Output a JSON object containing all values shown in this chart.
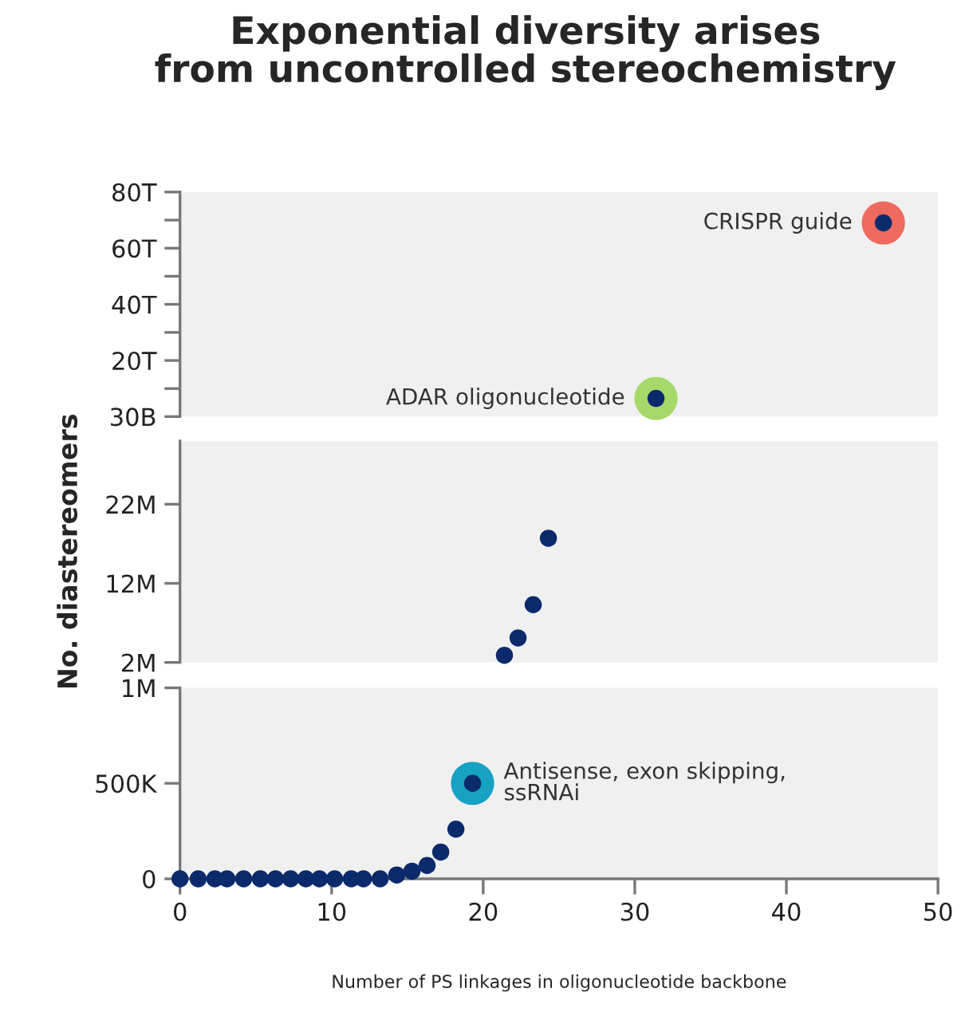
{
  "chart_data": [
    {
      "type": "scatter",
      "title": "Exponential diversity arises\nfrom uncontrolled stereochemistry",
      "xlim": [
        0,
        50
      ],
      "ylim": [
        30000000000,
        80000000000000
      ],
      "yticks": [
        {
          "value": 30000000000,
          "label": "30B"
        },
        {
          "value": 10000000000000,
          "label": null
        },
        {
          "value": 20000000000000,
          "label": "20T"
        },
        {
          "value": 30000000000000,
          "label": null
        },
        {
          "value": 40000000000000,
          "label": "40T"
        },
        {
          "value": 50000000000000,
          "label": null
        },
        {
          "value": 60000000000000,
          "label": "60T"
        },
        {
          "value": 70000000000000,
          "label": null
        },
        {
          "value": 80000000000000,
          "label": "80T"
        }
      ],
      "tick_labels": "y",
      "grid": false,
      "marker": "circle",
      "series": [
        {
          "x": [
            31.4,
            46.4
          ],
          "values": [
            6500000000000,
            69000000000000
          ],
          "colors": [
            "#a6d96a",
            "#ee6a5e"
          ]
        },
        {
          "x": [
            31.4,
            46.4
          ],
          "values": [
            6500000000000,
            69000000000000
          ],
          "color": "#0b2a6b"
        }
      ],
      "annotations": [
        {
          "text": "ADAR oligonucleotide",
          "x": 31.4,
          "y": 6500000000000
        },
        {
          "text": "CRISPR guide",
          "x": 46.4,
          "y": 69000000000000
        }
      ]
    },
    {
      "type": "scatter",
      "ylabel": "No. diastereomers",
      "xlim": [
        0,
        50
      ],
      "ylim": [
        2000000,
        30000000
      ],
      "yticks": [
        {
          "value": 2000000,
          "label": "2M"
        },
        {
          "value": 12000000,
          "label": "12M"
        },
        {
          "value": 22000000,
          "label": "22M"
        }
      ],
      "tick_labels": "y",
      "grid": false,
      "marker": "circle",
      "series": [
        {
          "x": [
            21.4,
            22.3,
            23.3,
            24.3
          ],
          "values": [
            2900000,
            5100000,
            9300000,
            17700000
          ],
          "color": "#0b2a6b"
        }
      ]
    },
    {
      "type": "scatter",
      "xlabel": "Number of PS linkages in oligonucleotide backbone",
      "xlim": [
        0,
        50
      ],
      "xticks": [
        0,
        10,
        20,
        30,
        40,
        50
      ],
      "ylim": [
        0,
        1000000
      ],
      "yticks": [
        0,
        {
          "value": 500000,
          "label": "500K"
        },
        {
          "value": 1000000,
          "label": "1M"
        }
      ],
      "grid": false,
      "marker": "circle",
      "series": [
        {
          "x": [
            19.3
          ],
          "values": [
            500000
          ],
          "colors": [
            "#17a2c4"
          ]
        },
        {
          "x": [
            0,
            1.2,
            2.3,
            3.1,
            4.2,
            5.3,
            6.3,
            7.3,
            8.3,
            9.2,
            10.2,
            11.3,
            12.1,
            13.2,
            14.3,
            15.3,
            16.3,
            17.2,
            18.2,
            19.3
          ],
          "values": [
            0,
            0,
            0,
            0,
            0,
            0,
            0,
            0,
            0,
            0,
            0,
            0,
            0,
            0,
            20000,
            40000,
            70000,
            140000,
            260000,
            500000
          ],
          "color": "#0b2a6b"
        }
      ],
      "annotations": [
        {
          "text": "Antisense, exon skipping,\nssRNAi",
          "x": 19.3,
          "y": 500000
        }
      ]
    }
  ]
}
